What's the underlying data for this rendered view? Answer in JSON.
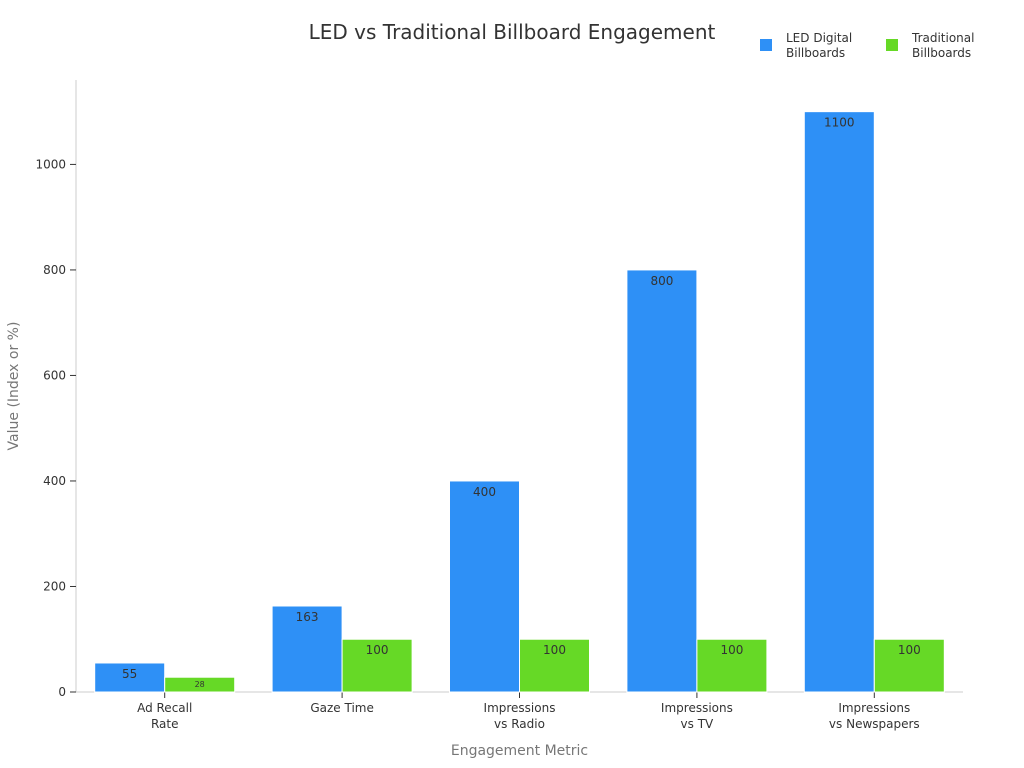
{
  "chart_data": {
    "type": "bar",
    "title": "LED vs Traditional Billboard Engagement",
    "xlabel": "Engagement Metric",
    "ylabel": "Value (Index or %)",
    "ylim": [
      0,
      1160
    ],
    "yticks": [
      0,
      200,
      400,
      600,
      800,
      1000
    ],
    "categories": [
      [
        "Ad Recall",
        "Rate"
      ],
      [
        "Gaze Time"
      ],
      [
        "Impressions",
        "vs Radio"
      ],
      [
        "Impressions",
        "vs TV"
      ],
      [
        "Impressions",
        "vs Newspapers"
      ]
    ],
    "series": [
      {
        "name": "LED Digital Billboards",
        "legend_lines": [
          "LED Digital",
          "Billboards"
        ],
        "color": "#2e90f6",
        "values": [
          55,
          163,
          400,
          800,
          1100
        ]
      },
      {
        "name": "Traditional Billboards",
        "legend_lines": [
          "Traditional",
          "Billboards"
        ],
        "color": "#66d926",
        "values": [
          28,
          100,
          100,
          100,
          100
        ]
      }
    ],
    "legend_position": "top-right"
  }
}
